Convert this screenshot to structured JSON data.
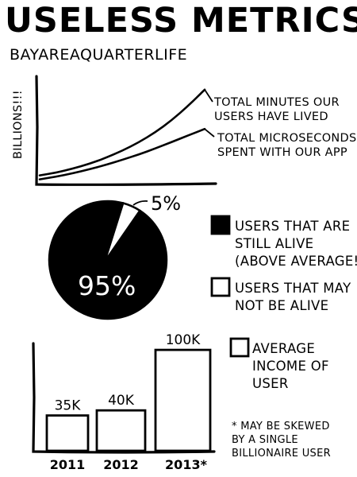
{
  "header": {
    "title": "USELESS METRICS",
    "subtitle": "BAYAREAQUARTERLIFE"
  },
  "chart_data": [
    {
      "type": "line",
      "title": "",
      "xlabel": "",
      "ylabel": "BILLIONS!!!",
      "grid": false,
      "x": [
        0,
        1,
        2,
        3,
        4,
        5,
        6,
        7,
        8,
        9,
        10
      ],
      "series": [
        {
          "name": "TOTAL MINUTES OUR|USERS HAVE LIVED",
          "values": [
            2.0,
            2.8,
            4.0,
            5.4,
            7.2,
            9.3,
            11.8,
            14.8,
            18.4,
            22.7,
            27.5
          ]
        },
        {
          "name": "TOTAL MICROSECONDS|SPENT WITH OUR APP",
          "values": [
            0.8,
            1.6,
            2.6,
            3.8,
            5.1,
            6.6,
            8.2,
            10.0,
            11.9,
            13.9,
            15.8
          ]
        }
      ],
      "xlim": [
        0,
        10
      ],
      "ylim": [
        0,
        40
      ]
    },
    {
      "type": "pie",
      "slices": [
        {
          "label": "95%",
          "value": 95,
          "color": "#000000"
        },
        {
          "label": "5%",
          "value": 5,
          "color": "#ffffff"
        }
      ],
      "legend": [
        {
          "label": "USERS THAT ARE|STILL ALIVE|(ABOVE AVERAGE!!)",
          "swatch": "#000000"
        },
        {
          "label": "USERS THAT MAY|NOT BE ALIVE",
          "swatch": "#ffffff"
        }
      ]
    },
    {
      "type": "bar",
      "categories": [
        "2011",
        "2012",
        "2013*"
      ],
      "values": [
        35,
        40,
        100
      ],
      "value_labels": [
        "35K",
        "40K",
        "100K"
      ],
      "ylim": [
        0,
        130
      ],
      "legend": [
        {
          "label": "AVERAGE|INCOME OF|USER",
          "swatch": "#ffffff"
        }
      ],
      "footnote": "* MAY BE SKEWED|BY A SINGLE|BILLIONAIRE USER"
    }
  ]
}
